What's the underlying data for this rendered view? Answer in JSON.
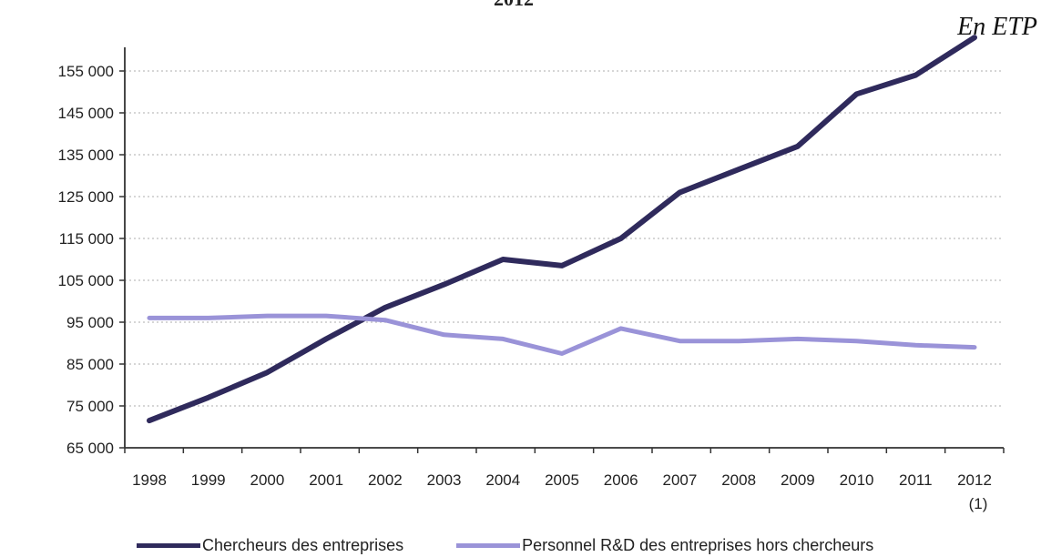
{
  "page": {
    "top_fragment": "2012",
    "unit": "En ETP"
  },
  "chart_data": {
    "type": "line",
    "unit": "En ETP",
    "x": [
      "1998",
      "1999",
      "2000",
      "2001",
      "2002",
      "2003",
      "2004",
      "2005",
      "2006",
      "2007",
      "2008",
      "2009",
      "2010",
      "2011",
      "2012"
    ],
    "x_tick_labels": [
      "1998",
      "1999",
      "2000",
      "2001",
      "2002",
      "2003",
      "2004",
      "2005",
      "2006",
      "2007",
      "2008",
      "2009",
      "2010",
      "2011",
      "2012"
    ],
    "x_tick_sublabels": [
      "",
      "",
      "",
      "",
      "",
      "",
      "",
      "",
      "",
      "",
      "",
      "",
      "",
      "",
      "(1)"
    ],
    "y_tick_labels": [
      "65 000",
      "75 000",
      "85 000",
      "95 000",
      "105 000",
      "115 000",
      "125 000",
      "135 000",
      "145 000",
      "155 000"
    ],
    "ylim": [
      65000,
      155000
    ],
    "grid": "horizontal dotted",
    "legend_position": "bottom",
    "series": [
      {
        "name": "Chercheurs des entreprises",
        "color": "#2f2a5c",
        "values": [
          71500,
          77000,
          83000,
          91000,
          98500,
          104000,
          110000,
          108500,
          115000,
          126000,
          131500,
          137000,
          149500,
          154000,
          163000
        ]
      },
      {
        "name": "Personnel R&D des entreprises hors chercheurs",
        "color": "#9a93d8",
        "values": [
          96000,
          96000,
          96500,
          96500,
          95500,
          92000,
          91000,
          87500,
          93500,
          90500,
          90500,
          91000,
          90500,
          89500,
          89000
        ]
      }
    ]
  }
}
